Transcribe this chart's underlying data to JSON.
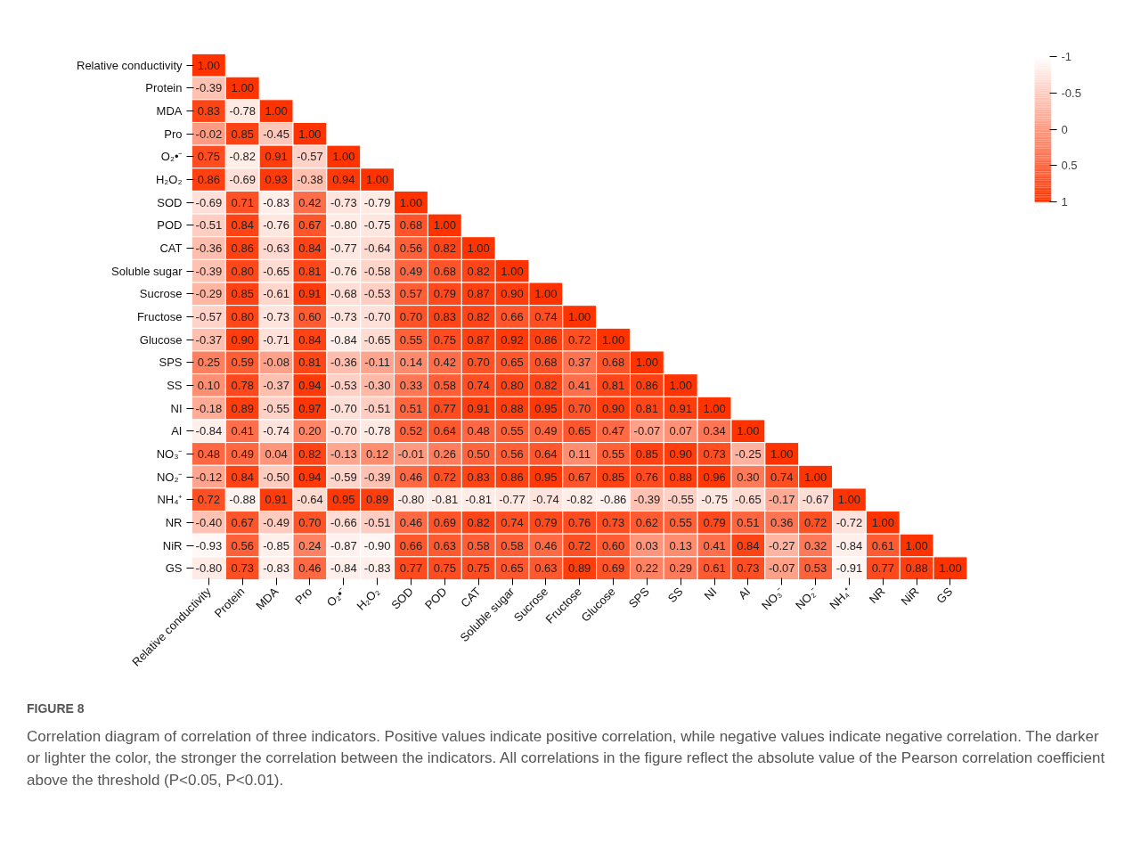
{
  "chart_data": {
    "type": "heatmap",
    "categories": [
      "Relative conductivity",
      "Protein",
      "MDA",
      "Pro",
      "O₂•⁻",
      "H₂O₂",
      "SOD",
      "POD",
      "CAT",
      "Soluble sugar",
      "Sucrose",
      "Fructose",
      "Glucose",
      "SPS",
      "SS",
      "NI",
      "AI",
      "NO₃⁻",
      "NO₂⁻",
      "NH₄⁺",
      "NR",
      "NiR",
      "GS"
    ],
    "y_categories": [
      "Relative conductivity",
      "Protein",
      "MDA",
      "Pro",
      "O₂•⁻",
      "H₂O₂",
      "SOD",
      "POD",
      "CAT",
      "Soluble sugar",
      "Sucrose",
      "Fructose",
      "Glucose",
      "SPS",
      "SS",
      "NI",
      "AI",
      "NO₃⁻",
      "NO₂⁻",
      "NH₄⁺",
      "NR",
      "NiR",
      "GS"
    ],
    "cells": [
      [
        1.0,
        null,
        null,
        null,
        null,
        null,
        null,
        null,
        null,
        null,
        null,
        null,
        null,
        null,
        null,
        null,
        null,
        null,
        null,
        null,
        null,
        null,
        null
      ],
      [
        -0.39,
        1.0,
        null,
        null,
        null,
        null,
        null,
        null,
        null,
        null,
        null,
        null,
        null,
        null,
        null,
        null,
        null,
        null,
        null,
        null,
        null,
        null,
        null
      ],
      [
        0.83,
        -0.78,
        1.0,
        null,
        null,
        null,
        null,
        null,
        null,
        null,
        null,
        null,
        null,
        null,
        null,
        null,
        null,
        null,
        null,
        null,
        null,
        null,
        null
      ],
      [
        -0.02,
        0.85,
        -0.45,
        1.0,
        null,
        null,
        null,
        null,
        null,
        null,
        null,
        null,
        null,
        null,
        null,
        null,
        null,
        null,
        null,
        null,
        null,
        null,
        null
      ],
      [
        0.75,
        -0.82,
        0.91,
        -0.57,
        1.0,
        null,
        null,
        null,
        null,
        null,
        null,
        null,
        null,
        null,
        null,
        null,
        null,
        null,
        null,
        null,
        null,
        null,
        null
      ],
      [
        0.86,
        -0.69,
        0.93,
        -0.38,
        0.94,
        1.0,
        null,
        null,
        null,
        null,
        null,
        null,
        null,
        null,
        null,
        null,
        null,
        null,
        null,
        null,
        null,
        null,
        null
      ],
      [
        -0.69,
        0.71,
        -0.83,
        0.42,
        -0.73,
        -0.79,
        1.0,
        null,
        null,
        null,
        null,
        null,
        null,
        null,
        null,
        null,
        null,
        null,
        null,
        null,
        null,
        null,
        null
      ],
      [
        -0.51,
        0.84,
        -0.76,
        0.67,
        -0.8,
        -0.75,
        0.68,
        1.0,
        null,
        null,
        null,
        null,
        null,
        null,
        null,
        null,
        null,
        null,
        null,
        null,
        null,
        null,
        null
      ],
      [
        -0.36,
        0.86,
        -0.63,
        0.84,
        -0.77,
        -0.64,
        0.56,
        0.82,
        1.0,
        null,
        null,
        null,
        null,
        null,
        null,
        null,
        null,
        null,
        null,
        null,
        null,
        null,
        null
      ],
      [
        -0.39,
        0.8,
        -0.65,
        0.81,
        -0.76,
        -0.58,
        0.49,
        0.68,
        0.82,
        1.0,
        null,
        null,
        null,
        null,
        null,
        null,
        null,
        null,
        null,
        null,
        null,
        null,
        null
      ],
      [
        -0.29,
        0.85,
        -0.61,
        0.91,
        -0.68,
        -0.53,
        0.57,
        0.79,
        0.87,
        0.9,
        1.0,
        null,
        null,
        null,
        null,
        null,
        null,
        null,
        null,
        null,
        null,
        null,
        null
      ],
      [
        -0.57,
        0.8,
        -0.73,
        0.6,
        -0.73,
        -0.7,
        0.7,
        0.83,
        0.82,
        0.66,
        0.74,
        1.0,
        null,
        null,
        null,
        null,
        null,
        null,
        null,
        null,
        null,
        null,
        null
      ],
      [
        -0.37,
        0.9,
        -0.71,
        0.84,
        -0.84,
        -0.65,
        0.55,
        0.75,
        0.87,
        0.92,
        0.86,
        0.72,
        1.0,
        null,
        null,
        null,
        null,
        null,
        null,
        null,
        null,
        null,
        null
      ],
      [
        0.25,
        0.59,
        -0.08,
        0.81,
        -0.36,
        -0.11,
        0.14,
        0.42,
        0.7,
        0.65,
        0.68,
        0.37,
        0.68,
        1.0,
        null,
        null,
        null,
        null,
        null,
        null,
        null,
        null,
        null
      ],
      [
        0.1,
        0.78,
        -0.37,
        0.94,
        -0.53,
        -0.3,
        0.33,
        0.58,
        0.74,
        0.8,
        0.82,
        0.41,
        0.81,
        0.86,
        1.0,
        null,
        null,
        null,
        null,
        null,
        null,
        null,
        null
      ],
      [
        -0.18,
        0.89,
        -0.55,
        0.97,
        -0.7,
        -0.51,
        0.51,
        0.77,
        0.91,
        0.88,
        0.95,
        0.7,
        0.9,
        0.81,
        0.91,
        1.0,
        null,
        null,
        null,
        null,
        null,
        null,
        null
      ],
      [
        -0.84,
        0.41,
        -0.74,
        0.2,
        -0.7,
        -0.78,
        0.52,
        0.64,
        0.48,
        0.55,
        0.49,
        0.65,
        0.47,
        -0.07,
        0.07,
        0.34,
        1.0,
        null,
        null,
        null,
        null,
        null,
        null
      ],
      [
        0.48,
        0.49,
        0.04,
        0.82,
        -0.13,
        0.12,
        -0.01,
        0.26,
        0.5,
        0.56,
        0.64,
        0.11,
        0.55,
        0.85,
        0.9,
        0.73,
        -0.25,
        1.0,
        null,
        null,
        null,
        null,
        null
      ],
      [
        -0.12,
        0.84,
        -0.5,
        0.94,
        -0.59,
        -0.39,
        0.46,
        0.72,
        0.83,
        0.86,
        0.95,
        0.67,
        0.85,
        0.76,
        0.88,
        0.96,
        0.3,
        0.74,
        1.0,
        null,
        null,
        null,
        null
      ],
      [
        0.72,
        -0.88,
        0.91,
        -0.64,
        0.95,
        0.89,
        -0.8,
        -0.81,
        -0.81,
        -0.77,
        -0.74,
        -0.82,
        -0.86,
        -0.39,
        -0.55,
        -0.75,
        -0.65,
        -0.17,
        -0.67,
        1.0,
        null,
        null,
        null
      ],
      [
        -0.4,
        0.67,
        -0.49,
        0.7,
        -0.66,
        -0.51,
        0.46,
        0.69,
        0.82,
        0.74,
        0.79,
        0.76,
        0.73,
        0.62,
        0.55,
        0.79,
        0.51,
        0.36,
        0.72,
        -0.72,
        1.0,
        null,
        null
      ],
      [
        -0.93,
        0.56,
        -0.85,
        0.24,
        -0.87,
        -0.9,
        0.66,
        0.63,
        0.58,
        0.58,
        0.46,
        0.72,
        0.6,
        0.03,
        0.13,
        0.41,
        0.84,
        -0.27,
        0.32,
        -0.84,
        0.61,
        1.0,
        null
      ],
      [
        -0.8,
        0.73,
        -0.83,
        0.46,
        -0.84,
        -0.83,
        0.77,
        0.75,
        0.75,
        0.65,
        0.63,
        0.89,
        0.69,
        0.22,
        0.29,
        0.61,
        0.73,
        -0.07,
        0.53,
        -0.91,
        0.77,
        0.88,
        1.0
      ]
    ],
    "cell_labels": [
      [
        "1.00",
        null,
        null,
        null,
        null,
        null,
        null,
        null,
        null,
        null,
        null,
        null,
        null,
        null,
        null,
        null,
        null,
        null,
        null,
        null,
        null,
        null,
        null
      ],
      [
        "-0.39",
        "1.00",
        null,
        null,
        null,
        null,
        null,
        null,
        null,
        null,
        null,
        null,
        null,
        null,
        null,
        null,
        null,
        null,
        null,
        null,
        null,
        null,
        null
      ],
      [
        "0.83",
        "-0.78",
        "1.00",
        null,
        null,
        null,
        null,
        null,
        null,
        null,
        null,
        null,
        null,
        null,
        null,
        null,
        null,
        null,
        null,
        null,
        null,
        null,
        null
      ],
      [
        "-0.02",
        "0.85",
        "-0.45",
        "1.00",
        null,
        null,
        null,
        null,
        null,
        null,
        null,
        null,
        null,
        null,
        null,
        null,
        null,
        null,
        null,
        null,
        null,
        null,
        null
      ],
      [
        "0.75",
        "-0.82",
        "0.91",
        "-0.57",
        "1.00",
        null,
        null,
        null,
        null,
        null,
        null,
        null,
        null,
        null,
        null,
        null,
        null,
        null,
        null,
        null,
        null,
        null,
        null
      ],
      [
        "0.86",
        "-0.69",
        "0.93",
        "-0.38",
        "0.94",
        "1.00",
        null,
        null,
        null,
        null,
        null,
        null,
        null,
        null,
        null,
        null,
        null,
        null,
        null,
        null,
        null,
        null,
        null
      ],
      [
        "-0.69",
        "0.71",
        "-0.83",
        "0.42",
        "-0.73",
        "-0.79",
        "1.00",
        null,
        null,
        null,
        null,
        null,
        null,
        null,
        null,
        null,
        null,
        null,
        null,
        null,
        null,
        null,
        null
      ],
      [
        "-0.51",
        "0.84",
        "-0.76",
        "0.67",
        "-0.80",
        "-0.75",
        "0.68",
        "1.00",
        null,
        null,
        null,
        null,
        null,
        null,
        null,
        null,
        null,
        null,
        null,
        null,
        null,
        null,
        null
      ],
      [
        "-0.36",
        "0.86",
        "-0.63",
        "0.84",
        "-0.77",
        "-0.64",
        "0.56",
        "0.82",
        "1.00",
        null,
        null,
        null,
        null,
        null,
        null,
        null,
        null,
        null,
        null,
        null,
        null,
        null,
        null
      ],
      [
        "-0.39",
        "0.80",
        "-0.65",
        "0.81",
        "-0.76",
        "-0.58",
        "0.49",
        "0.68",
        "0.82",
        "1.00",
        null,
        null,
        null,
        null,
        null,
        null,
        null,
        null,
        null,
        null,
        null,
        null,
        null
      ],
      [
        "-0.29",
        "0.85",
        "-0.61",
        "0.91",
        "-0.68",
        "-0.53",
        "0.57",
        "0.79",
        "0.87",
        "0.90",
        "1.00",
        null,
        null,
        null,
        null,
        null,
        null,
        null,
        null,
        null,
        null,
        null,
        null
      ],
      [
        "-0.57",
        "0.80",
        "-0.73",
        "0.60",
        "-0.73",
        "-0.70",
        "0.70",
        "0.83",
        "0.82",
        "0.66",
        "0.74",
        "1.00",
        null,
        null,
        null,
        null,
        null,
        null,
        null,
        null,
        null,
        null,
        null
      ],
      [
        "-0.37",
        "0.90",
        "-0.71",
        "0.84",
        "-0.84",
        "-0.65",
        "0.55",
        "0.75",
        "0.87",
        "0.92",
        "0.86",
        "0.72",
        "1.00",
        null,
        null,
        null,
        null,
        null,
        null,
        null,
        null,
        null,
        null
      ],
      [
        "0.25",
        "0.59",
        "-0.08",
        "0.81",
        "-0.36",
        "-0.11",
        "0.14",
        "0.42",
        "0.70",
        "0.65",
        "0.68",
        "0.37",
        "0.68",
        "1.00",
        null,
        null,
        null,
        null,
        null,
        null,
        null,
        null,
        null
      ],
      [
        "0.10",
        "0.78",
        "-0.37",
        "0.94",
        "-0.53",
        "-0.30",
        "0.33",
        "0.58",
        "0.74",
        "0.80",
        "0.82",
        "0.41",
        "0.81",
        "0.86",
        "1.00",
        null,
        null,
        null,
        null,
        null,
        null,
        null,
        null
      ],
      [
        "-0.18",
        "0.89",
        "-0.55",
        "0.97",
        "-0.70",
        "-0.51",
        "0.51",
        "0.77",
        "0.91",
        "0.88",
        "0.95",
        "0.70",
        "0.90",
        "0.81",
        "0.91",
        "1.00",
        null,
        null,
        null,
        null,
        null,
        null,
        null
      ],
      [
        "-0.84",
        "0.41",
        "-0.74",
        "0.20",
        "-0.70",
        "-0.78",
        "0.52",
        "0.64",
        "0.48",
        "0.55",
        "0.49",
        "0.65",
        "0.47",
        "-0.07",
        "0.07",
        "0.34",
        "1.00",
        null,
        null,
        null,
        null,
        null,
        null
      ],
      [
        "0.48",
        "0.49",
        "0.04",
        "0.82",
        "-0.13",
        "0.12",
        "-0.01",
        "0.26",
        "0.50",
        "0.56",
        "0.64",
        "0.11",
        "0.55",
        "0.85",
        "0.90",
        "0.73",
        "-0.25",
        "1.00",
        null,
        null,
        null,
        null,
        null
      ],
      [
        "-0.12",
        "0.84",
        "-0.50",
        "0.94",
        "-0.59",
        "-0.39",
        "0.46",
        "0.72",
        "0.83",
        "0.86",
        "0.95",
        "0.67",
        "0.85",
        "0.76",
        "0.88",
        "0.96",
        "0.30",
        "0.74",
        "1.00",
        null,
        null,
        null,
        null
      ],
      [
        "0.72",
        "-0.88",
        "0.91",
        "-0.64",
        "0.95",
        "0.89",
        "-0.80",
        "-0.81",
        "-0.81",
        "-0.77",
        "-0.74",
        "-0.82",
        "-0.86",
        "-0.39",
        "-0.55",
        "-0.75",
        "-0.65",
        "-0.17",
        "-0.67",
        "1.00",
        null,
        null,
        null
      ],
      [
        "-0.40",
        "0.67",
        "-0.49",
        "0.70",
        "-0.66",
        "-0.51",
        "0.46",
        "0.69",
        "0.82",
        "0.74",
        "0.79",
        "0.76",
        "0.73",
        "0.62",
        "0.55",
        "0.79",
        "0.51",
        "0.36",
        "0.72",
        "-0.72",
        "1.00",
        null,
        null
      ],
      [
        "-0.93",
        "0.56",
        "-0.85",
        "0.24",
        "-0.87",
        "-0.90",
        "0.66",
        "0.63",
        "0.58",
        "0.58",
        "0.46",
        "0.72",
        "0.60",
        "0.03",
        "0.13",
        "0.41",
        "0.84",
        "-0.27",
        "0.32",
        "-0.84",
        "0.61",
        "1.00",
        null
      ],
      [
        "-0.80",
        "0.73",
        "-0.83",
        "0.46",
        "-0.84",
        "-0.83",
        "0.77",
        "0.75",
        "0.75",
        "0.65",
        "0.63",
        "0.89",
        "0.69",
        "0.22",
        "0.29",
        "0.61",
        "0.73",
        "-0.07",
        "0.53",
        "-0.91",
        "0.77",
        "0.88",
        "1.00"
      ]
    ],
    "colors": [
      "#ffffff",
      "#ff3300"
    ],
    "clim": [
      -1,
      1
    ],
    "cticks": [
      -1,
      -0.5,
      0,
      0.5,
      1
    ],
    "annotations": [
      "FIGURE 8",
      "Correlation diagram of correlation of three indicators. Positive values indicate positive correlation, while negative values indicate negative correlation. The darker or lighter the color, the stronger the correlation between the indicators. All correlations in the figure reflect the absolute value of the Pearson correlation coefficient above the threshold (P<0.05, P<0.01)."
    ]
  }
}
